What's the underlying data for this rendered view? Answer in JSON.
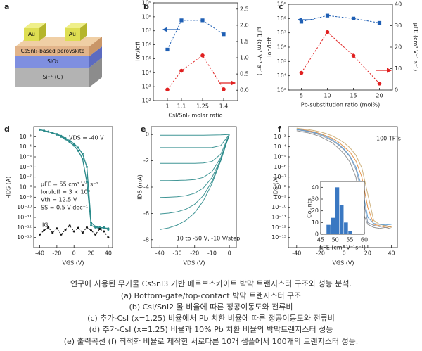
{
  "panel_a": {
    "panel": "a",
    "layers": [
      "Au",
      "Au",
      "CsSnI₃-based perovskite",
      "SiO₂",
      "Si⁺⁺ (G)"
    ]
  },
  "chart_data": [
    {
      "panel": "b",
      "type": "line",
      "xlabel": "CsI/SnI₂ molar ratio",
      "ylabel": "Ion/Ioff",
      "y2label": "μFE (cm² V⁻¹ s⁻¹)",
      "x": [
        1,
        1.1,
        1.25,
        1.4
      ],
      "xlim": [
        0.9,
        1.5
      ],
      "xticks": [
        1,
        1.1,
        1.25,
        1.4
      ],
      "ylog": true,
      "ylim": [
        100,
        1000000000
      ],
      "yticks": [
        {
          "value": 100,
          "label": "10²"
        },
        {
          "value": 1000,
          "label": "10³"
        },
        {
          "value": 10000,
          "label": "10⁴"
        },
        {
          "value": 100000,
          "label": "10⁵"
        },
        {
          "value": 1000000,
          "label": "10⁶"
        },
        {
          "value": 10000000,
          "label": "10⁷"
        },
        {
          "value": 100000000,
          "label": "10⁸"
        },
        {
          "value": 1000000000,
          "label": "10⁹"
        }
      ],
      "y2lim": [
        -0.32,
        2.69
      ],
      "y2ticks": [
        {
          "value": 0,
          "label": "0.0"
        },
        0.5,
        {
          "value": 1,
          "label": "1.0"
        },
        1.5,
        {
          "value": 2,
          "label": "2.0"
        },
        2.5
      ],
      "series": [
        {
          "color": "#1f5fb4",
          "marker": "square",
          "dashed": true,
          "values": [
            450000,
            56000000,
            56000000,
            5600000
          ]
        },
        {
          "color": "#e02020",
          "marker": "circle",
          "dashed": true,
          "axis": "y2",
          "values": [
            0.02,
            0.6,
            1.07,
            0.03
          ]
        }
      ]
    },
    {
      "panel": "c",
      "type": "line",
      "xlabel": "Pb-substitution ratio (mol%)",
      "ylabel": "Ion/Ioff",
      "y2label": "μFE (cm² V⁻¹ s⁻¹)",
      "x": [
        5,
        10,
        15,
        20
      ],
      "xlim": [
        2.5,
        22.5
      ],
      "xticks": [
        5,
        10,
        15,
        20
      ],
      "ylog": true,
      "ylim": [
        1000,
        1000000000
      ],
      "yticks": [
        {
          "value": 1000,
          "label": "10³"
        },
        {
          "value": 10000,
          "label": "10⁴"
        },
        {
          "value": 100000,
          "label": "10⁵"
        },
        {
          "value": 1000000,
          "label": "10⁶"
        },
        {
          "value": 10000000,
          "label": "10⁷"
        },
        {
          "value": 100000000,
          "label": "10⁸"
        },
        {
          "value": 1000000000,
          "label": "10⁹"
        }
      ],
      "y2lim": [
        0,
        40
      ],
      "y2ticks": [
        0,
        10,
        20,
        30,
        40
      ],
      "series": [
        {
          "color": "#1f5fb4",
          "marker": "square",
          "dashed": true,
          "values": [
            60000000,
            160000000,
            100000000,
            50000000
          ]
        },
        {
          "color": "#e02020",
          "marker": "circle",
          "dashed": true,
          "axis": "y2",
          "values": [
            8,
            27,
            16,
            3
          ]
        }
      ]
    },
    {
      "panel": "d",
      "type": "line",
      "xlabel": "VGS (V)",
      "ylabel": "-IDS (A)",
      "x": [
        -40,
        -35,
        -30,
        -25,
        -20,
        -15,
        -10,
        -5,
        0,
        5,
        10,
        15,
        20,
        25,
        30,
        35,
        40
      ],
      "xlim": [
        -47,
        45
      ],
      "xticks": [
        -40,
        -20,
        0,
        20,
        40
      ],
      "ylog": true,
      "ylim": [
        1e-14,
        0.01
      ],
      "yticks": [
        {
          "value": 0.001,
          "label": "10⁻³"
        },
        {
          "value": 0.0001,
          "label": "10⁻⁴"
        },
        {
          "value": 1e-05,
          "label": "10⁻⁵"
        },
        {
          "value": 1e-06,
          "label": "10⁻⁶"
        },
        {
          "value": 1e-07,
          "label": "10⁻⁷"
        },
        {
          "value": 1e-08,
          "label": "10⁻⁸"
        },
        {
          "value": 1e-09,
          "label": "10⁻⁹"
        },
        {
          "value": 1e-10,
          "label": "10⁻¹⁰"
        },
        {
          "value": 1e-11,
          "label": "10⁻¹¹"
        },
        {
          "value": 1e-12,
          "label": "10⁻¹²"
        },
        {
          "value": 1e-13,
          "label": "10⁻¹³"
        }
      ],
      "annotations": [
        "VDS = -40 V",
        "μFE = 55 cm² V⁻¹s⁻¹",
        "Ion/Ioff = 3 × 10⁸",
        "Vth = 12.5 V",
        "SS = 0.5 V dec⁻¹",
        "IG"
      ],
      "series": [
        {
          "color": "#2a8a8a",
          "marker": "dot",
          "values": [
            0.005,
            0.004,
            0.0032,
            0.0022,
            0.0016,
            0.001,
            0.00056,
            0.00028,
            0.00013,
            4e-05,
            6.3e-06,
            3.2e-08,
            1.6e-12,
            1e-12,
            8e-13,
            1e-12,
            6e-13
          ]
        },
        {
          "color": "#2a8a8a",
          "marker": "dot",
          "values": [
            0.005,
            0.004,
            0.0032,
            0.0024,
            0.0018,
            0.0012,
            0.0007,
            0.0004,
            0.0002,
            8e-05,
            2e-05,
            1e-06,
            3e-12,
            1.2e-12,
            1e-12,
            9e-13,
            8e-13
          ]
        },
        {
          "color": "#111111",
          "marker": "dot",
          "dashed": true,
          "values": [
            2e-13,
            5e-13,
            1e-12,
            3e-13,
            8e-13,
            2e-13,
            6e-13,
            1.5e-12,
            4e-13,
            9e-13,
            3e-13,
            1e-12,
            5e-13,
            2e-13,
            7e-13,
            4e-13,
            1e-13
          ]
        }
      ]
    },
    {
      "panel": "e",
      "type": "line",
      "xlabel": "VDS (V)",
      "ylabel": "IDS (mA)",
      "x": [
        0,
        -5,
        -10,
        -15,
        -20,
        -25,
        -30,
        -35,
        -40
      ],
      "xlim": [
        -45,
        4
      ],
      "xticks": [
        -40,
        -30,
        -20,
        -10,
        0
      ],
      "ylim": [
        -8.6,
        0.6
      ],
      "yticks": [
        0,
        -2,
        -4,
        -6,
        -8
      ],
      "annotations": [
        "10 to -50 V, -10 V/step"
      ],
      "series": [
        {
          "color": "#2a8a8a",
          "values": [
            0,
            -0.03,
            -0.04,
            -0.05,
            -0.05,
            -0.05,
            -0.05,
            -0.05,
            -0.05
          ]
        },
        {
          "color": "#2a8a8a",
          "values": [
            0,
            -0.85,
            -0.99,
            -1,
            -1,
            -1,
            -1,
            -1,
            -1
          ]
        },
        {
          "color": "#2a8a8a",
          "values": [
            0,
            -1.5,
            -2.05,
            -2.17,
            -2.19,
            -2.2,
            -2.2,
            -2.2,
            -2.2
          ]
        },
        {
          "color": "#2a8a8a",
          "values": [
            0,
            -1.77,
            -2.82,
            -3.26,
            -3.42,
            -3.47,
            -3.49,
            -3.5,
            -3.5
          ]
        },
        {
          "color": "#2a8a8a",
          "values": [
            0,
            -1.89,
            -3.27,
            -4.07,
            -4.47,
            -4.65,
            -4.74,
            -4.77,
            -4.79
          ]
        },
        {
          "color": "#2a8a8a",
          "values": [
            0,
            -1.96,
            -3.56,
            -4.65,
            -5.31,
            -5.68,
            -5.88,
            -5.98,
            -6.04
          ]
        },
        {
          "color": "#2a8a8a",
          "values": [
            0,
            -2.01,
            -3.74,
            -5.05,
            -5.96,
            -6.53,
            -6.89,
            -7.1,
            -7.23
          ]
        }
      ]
    },
    {
      "panel": "f",
      "type": "line",
      "xlabel": "VGS (V)",
      "ylabel": "-IDS (A)",
      "x": [
        -40,
        -35,
        -30,
        -25,
        -20,
        -15,
        -10,
        -5,
        0,
        5,
        10,
        15,
        20,
        25,
        30,
        35,
        40
      ],
      "xlim": [
        -47,
        45
      ],
      "xticks": [
        -40,
        -20,
        0,
        20,
        40
      ],
      "ylog": true,
      "ylim": [
        1e-14,
        0.01
      ],
      "yticks": [
        {
          "value": 0.001,
          "label": "10⁻³"
        },
        {
          "value": 0.0001,
          "label": "10⁻⁴"
        },
        {
          "value": 1e-05,
          "label": "10⁻⁵"
        },
        {
          "value": 1e-06,
          "label": "10⁻⁶"
        },
        {
          "value": 1e-07,
          "label": "10⁻⁷"
        },
        {
          "value": 1e-08,
          "label": "10⁻⁸"
        },
        {
          "value": 1e-09,
          "label": "10⁻⁹"
        },
        {
          "value": 1e-10,
          "label": "10⁻¹⁰"
        },
        {
          "value": 1e-11,
          "label": "10⁻¹¹"
        },
        {
          "value": 1e-12,
          "label": "10⁻¹²"
        },
        {
          "value": 1e-13,
          "label": "10⁻¹³"
        }
      ],
      "annotations": [
        "100 TFTs"
      ],
      "series": [
        {
          "color": "#7f8fa6",
          "values": [
            0.005,
            0.004,
            0.0032,
            0.0022,
            0.0014,
            0.0008,
            0.0004,
            0.00016,
            5e-05,
            1e-05,
            6e-07,
            3e-09,
            3e-12,
            1.6e-12,
            1.2e-12,
            1.6e-12,
            1e-12
          ]
        },
        {
          "color": "#e08a3c",
          "values": [
            0.006,
            0.005,
            0.004,
            0.003,
            0.002,
            0.0012,
            0.0007,
            0.0003,
            0.0001,
            3e-05,
            4e-06,
            1e-07,
            1e-10,
            2e-12,
            1.5e-12,
            1e-12,
            1.2e-12
          ]
        },
        {
          "color": "#8a8a8a",
          "values": [
            0.004,
            0.003,
            0.0024,
            0.0016,
            0.001,
            0.0005,
            0.00025,
            8e-05,
            2e-05,
            3e-06,
            1e-07,
            5e-11,
            2e-12,
            1e-12,
            8e-13,
            1e-12,
            7e-13
          ]
        },
        {
          "color": "#c9a96e",
          "values": [
            0.007,
            0.006,
            0.005,
            0.004,
            0.003,
            0.002,
            0.0012,
            0.0006,
            0.00025,
            8e-05,
            1.5e-05,
            8e-07,
            2e-09,
            5e-12,
            2e-12,
            1.5e-12,
            1e-12
          ]
        },
        {
          "color": "#5a9bd4",
          "values": [
            0.005,
            0.0045,
            0.0035,
            0.0026,
            0.0017,
            0.001,
            0.0005,
            0.0002,
            6e-05,
            1.2e-05,
            1e-06,
            1e-08,
            1e-11,
            2.5e-12,
            2e-12,
            1.8e-12,
            2e-12
          ]
        }
      ]
    },
    {
      "type": "histogram",
      "xlabel": "μFE (cm² V⁻¹s⁻¹)",
      "ylabel": "Counts",
      "color": "#3a78c2",
      "bins": [
        47,
        48.5,
        50,
        51.5,
        53,
        54.5,
        56
      ],
      "values": [
        8,
        14,
        40,
        25,
        10,
        3
      ],
      "xlim": [
        45,
        60
      ],
      "xticks": [
        45,
        50,
        55,
        60
      ],
      "ylim": [
        0,
        45
      ],
      "yticks": [
        0,
        10,
        20,
        30,
        40
      ]
    }
  ],
  "caption": [
    "연구에 사용된 무기물 CsSnI3 기반 페로브스카이트 박막 트랜지스터 구조와 성능 분석.",
    "(a) Bottom-gate/top-contact 박막 트랜지스터 구조",
    "(b) CsI/SnI2 몰 비율에 따른 정공이동도와 전류비",
    "(c) 추가-CsI (x=1.25) 비율에서 Pb 치환 비율에 따른 정공이동도와 전류비",
    "(d) 추가-CsI (x=1.25) 비율과 10% Pb 치환 비율의 박막트랜지스터 성능",
    "(e) 출력곡선 (f) 최적화 비율로 제작한 서로다른 10개 샘플에서 100개의 트랜지스터 성능."
  ]
}
